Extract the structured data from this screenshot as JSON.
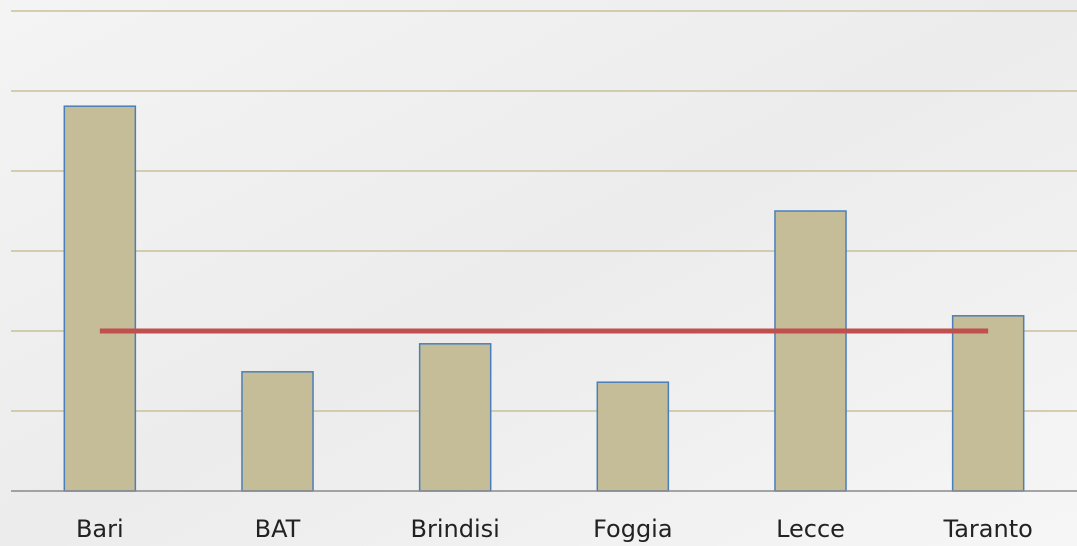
{
  "chart_data": {
    "type": "bar",
    "categories": [
      "Bari",
      "BAT",
      "Brindisi",
      "Foggia",
      "Lecce",
      "Taranto"
    ],
    "series": [
      {
        "type": "bar",
        "color": "#c5bd97",
        "values": [
          4.81,
          1.49,
          1.84,
          1.36,
          3.5,
          2.19
        ]
      },
      {
        "type": "line",
        "color": "#c0504d",
        "values": [
          2,
          2,
          2,
          2,
          2,
          2
        ]
      }
    ],
    "ylim": [
      0,
      6
    ],
    "yticks": [
      0,
      1,
      2,
      3,
      4,
      5,
      6
    ],
    "grid": true
  }
}
